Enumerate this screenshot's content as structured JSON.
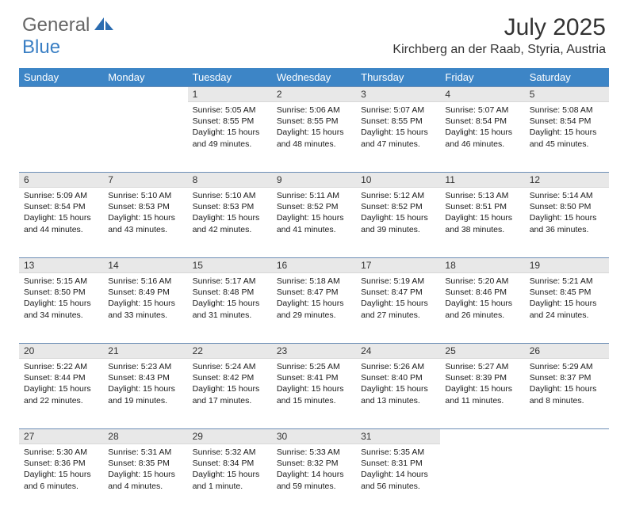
{
  "logo": {
    "general": "General",
    "blue": "Blue"
  },
  "title": "July 2025",
  "location": "Kirchberg an der Raab, Styria, Austria",
  "colors": {
    "header_bg": "#3d85c6",
    "header_fg": "#ffffff",
    "daynum_bg": "#e8e8e8",
    "daynum_border_top": "#6b8db5",
    "logo_gray": "#666666",
    "logo_blue": "#3a7fc4"
  },
  "day_headers": [
    "Sunday",
    "Monday",
    "Tuesday",
    "Wednesday",
    "Thursday",
    "Friday",
    "Saturday"
  ],
  "weeks": [
    [
      {
        "n": "",
        "sr": "",
        "ss": "",
        "dl": ""
      },
      {
        "n": "",
        "sr": "",
        "ss": "",
        "dl": ""
      },
      {
        "n": "1",
        "sr": "Sunrise: 5:05 AM",
        "ss": "Sunset: 8:55 PM",
        "dl": "Daylight: 15 hours and 49 minutes."
      },
      {
        "n": "2",
        "sr": "Sunrise: 5:06 AM",
        "ss": "Sunset: 8:55 PM",
        "dl": "Daylight: 15 hours and 48 minutes."
      },
      {
        "n": "3",
        "sr": "Sunrise: 5:07 AM",
        "ss": "Sunset: 8:55 PM",
        "dl": "Daylight: 15 hours and 47 minutes."
      },
      {
        "n": "4",
        "sr": "Sunrise: 5:07 AM",
        "ss": "Sunset: 8:54 PM",
        "dl": "Daylight: 15 hours and 46 minutes."
      },
      {
        "n": "5",
        "sr": "Sunrise: 5:08 AM",
        "ss": "Sunset: 8:54 PM",
        "dl": "Daylight: 15 hours and 45 minutes."
      }
    ],
    [
      {
        "n": "6",
        "sr": "Sunrise: 5:09 AM",
        "ss": "Sunset: 8:54 PM",
        "dl": "Daylight: 15 hours and 44 minutes."
      },
      {
        "n": "7",
        "sr": "Sunrise: 5:10 AM",
        "ss": "Sunset: 8:53 PM",
        "dl": "Daylight: 15 hours and 43 minutes."
      },
      {
        "n": "8",
        "sr": "Sunrise: 5:10 AM",
        "ss": "Sunset: 8:53 PM",
        "dl": "Daylight: 15 hours and 42 minutes."
      },
      {
        "n": "9",
        "sr": "Sunrise: 5:11 AM",
        "ss": "Sunset: 8:52 PM",
        "dl": "Daylight: 15 hours and 41 minutes."
      },
      {
        "n": "10",
        "sr": "Sunrise: 5:12 AM",
        "ss": "Sunset: 8:52 PM",
        "dl": "Daylight: 15 hours and 39 minutes."
      },
      {
        "n": "11",
        "sr": "Sunrise: 5:13 AM",
        "ss": "Sunset: 8:51 PM",
        "dl": "Daylight: 15 hours and 38 minutes."
      },
      {
        "n": "12",
        "sr": "Sunrise: 5:14 AM",
        "ss": "Sunset: 8:50 PM",
        "dl": "Daylight: 15 hours and 36 minutes."
      }
    ],
    [
      {
        "n": "13",
        "sr": "Sunrise: 5:15 AM",
        "ss": "Sunset: 8:50 PM",
        "dl": "Daylight: 15 hours and 34 minutes."
      },
      {
        "n": "14",
        "sr": "Sunrise: 5:16 AM",
        "ss": "Sunset: 8:49 PM",
        "dl": "Daylight: 15 hours and 33 minutes."
      },
      {
        "n": "15",
        "sr": "Sunrise: 5:17 AM",
        "ss": "Sunset: 8:48 PM",
        "dl": "Daylight: 15 hours and 31 minutes."
      },
      {
        "n": "16",
        "sr": "Sunrise: 5:18 AM",
        "ss": "Sunset: 8:47 PM",
        "dl": "Daylight: 15 hours and 29 minutes."
      },
      {
        "n": "17",
        "sr": "Sunrise: 5:19 AM",
        "ss": "Sunset: 8:47 PM",
        "dl": "Daylight: 15 hours and 27 minutes."
      },
      {
        "n": "18",
        "sr": "Sunrise: 5:20 AM",
        "ss": "Sunset: 8:46 PM",
        "dl": "Daylight: 15 hours and 26 minutes."
      },
      {
        "n": "19",
        "sr": "Sunrise: 5:21 AM",
        "ss": "Sunset: 8:45 PM",
        "dl": "Daylight: 15 hours and 24 minutes."
      }
    ],
    [
      {
        "n": "20",
        "sr": "Sunrise: 5:22 AM",
        "ss": "Sunset: 8:44 PM",
        "dl": "Daylight: 15 hours and 22 minutes."
      },
      {
        "n": "21",
        "sr": "Sunrise: 5:23 AM",
        "ss": "Sunset: 8:43 PM",
        "dl": "Daylight: 15 hours and 19 minutes."
      },
      {
        "n": "22",
        "sr": "Sunrise: 5:24 AM",
        "ss": "Sunset: 8:42 PM",
        "dl": "Daylight: 15 hours and 17 minutes."
      },
      {
        "n": "23",
        "sr": "Sunrise: 5:25 AM",
        "ss": "Sunset: 8:41 PM",
        "dl": "Daylight: 15 hours and 15 minutes."
      },
      {
        "n": "24",
        "sr": "Sunrise: 5:26 AM",
        "ss": "Sunset: 8:40 PM",
        "dl": "Daylight: 15 hours and 13 minutes."
      },
      {
        "n": "25",
        "sr": "Sunrise: 5:27 AM",
        "ss": "Sunset: 8:39 PM",
        "dl": "Daylight: 15 hours and 11 minutes."
      },
      {
        "n": "26",
        "sr": "Sunrise: 5:29 AM",
        "ss": "Sunset: 8:37 PM",
        "dl": "Daylight: 15 hours and 8 minutes."
      }
    ],
    [
      {
        "n": "27",
        "sr": "Sunrise: 5:30 AM",
        "ss": "Sunset: 8:36 PM",
        "dl": "Daylight: 15 hours and 6 minutes."
      },
      {
        "n": "28",
        "sr": "Sunrise: 5:31 AM",
        "ss": "Sunset: 8:35 PM",
        "dl": "Daylight: 15 hours and 4 minutes."
      },
      {
        "n": "29",
        "sr": "Sunrise: 5:32 AM",
        "ss": "Sunset: 8:34 PM",
        "dl": "Daylight: 15 hours and 1 minute."
      },
      {
        "n": "30",
        "sr": "Sunrise: 5:33 AM",
        "ss": "Sunset: 8:32 PM",
        "dl": "Daylight: 14 hours and 59 minutes."
      },
      {
        "n": "31",
        "sr": "Sunrise: 5:35 AM",
        "ss": "Sunset: 8:31 PM",
        "dl": "Daylight: 14 hours and 56 minutes."
      },
      {
        "n": "",
        "sr": "",
        "ss": "",
        "dl": ""
      },
      {
        "n": "",
        "sr": "",
        "ss": "",
        "dl": ""
      }
    ]
  ]
}
